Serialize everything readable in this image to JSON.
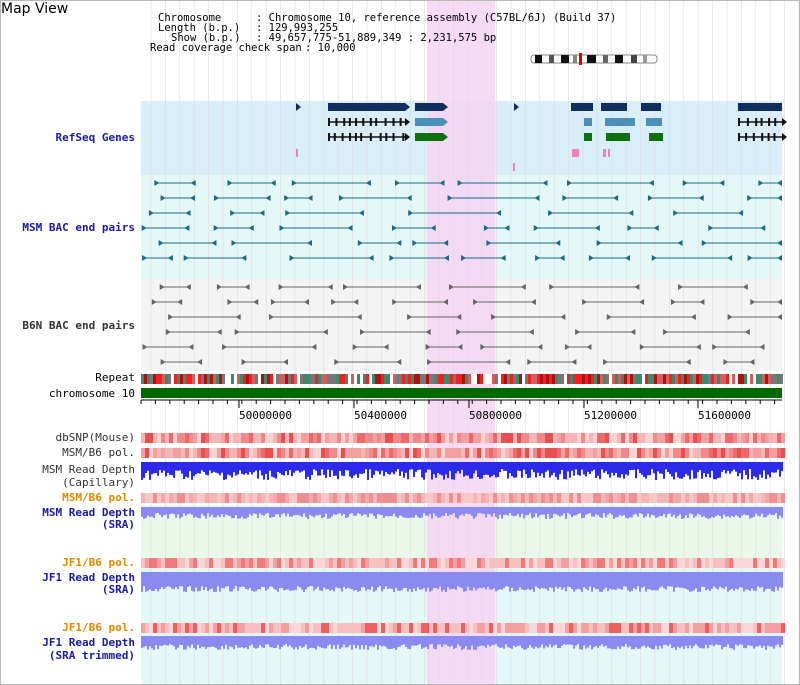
{
  "map_title": "Map View",
  "info": {
    "chromosome_label": "Chromosome",
    "chromosome_value": ": Chromosome 10, reference assembly (C57BL/6J) (Build 37)",
    "length_label": "Length (b.p.)",
    "length_value": ": 129,993,255",
    "show_label": "Show (b.p.)",
    "show_value": ": 49,657,775-51,889,349 : 2,231,575 bp",
    "coverage_label": "Read coverage check span",
    "coverage_value": ": 10,000"
  },
  "tracks": {
    "refseq": "RefSeq Genes",
    "msm_bac": "MSM BAC end pairs",
    "b6n_bac": "B6N BAC end pairs",
    "repeat": "Repeat",
    "chromosome": "chromosome 10",
    "dbsnp": "dbSNP(Mouse)",
    "msm_b6_pol_1": "MSM/B6 pol.",
    "msm_read_depth_cap_1": "MSM Read Depth",
    "msm_read_depth_cap_2": "(Capillary)",
    "msm_b6_pol_2": "MSM/B6 pol.",
    "msm_read_depth_sra_1": "MSM Read Depth",
    "msm_read_depth_sra_2": "(SRA)",
    "jf1_b6_pol_1": "JF1/B6 pol.",
    "jf1_read_depth_sra_1": "JF1 Read Depth",
    "jf1_read_depth_sra_2": "(SRA)",
    "jf1_b6_pol_2": "JF1/B6 pol.",
    "jf1_read_depth_trim_1": "JF1 Read Depth",
    "jf1_read_depth_trim_2": "(SRA trimmed)"
  },
  "axis": {
    "ticks": [
      "50000000",
      "50400000",
      "50800000",
      "51200000",
      "51600000"
    ]
  },
  "colors": {
    "refseq_bg": "#d8eef8",
    "bac_bg": "#e4f8f8",
    "b6n_bg": "#f4f4f4",
    "highlight": "#f6d4f2",
    "gene_navy": "#0f2e5e",
    "gene_teal": "#4a90b8",
    "gene_green": "#107010",
    "chromosome_green": "#006a00",
    "depth_blue": "#2a2ae8",
    "depth_light": "#8a8af0"
  }
}
